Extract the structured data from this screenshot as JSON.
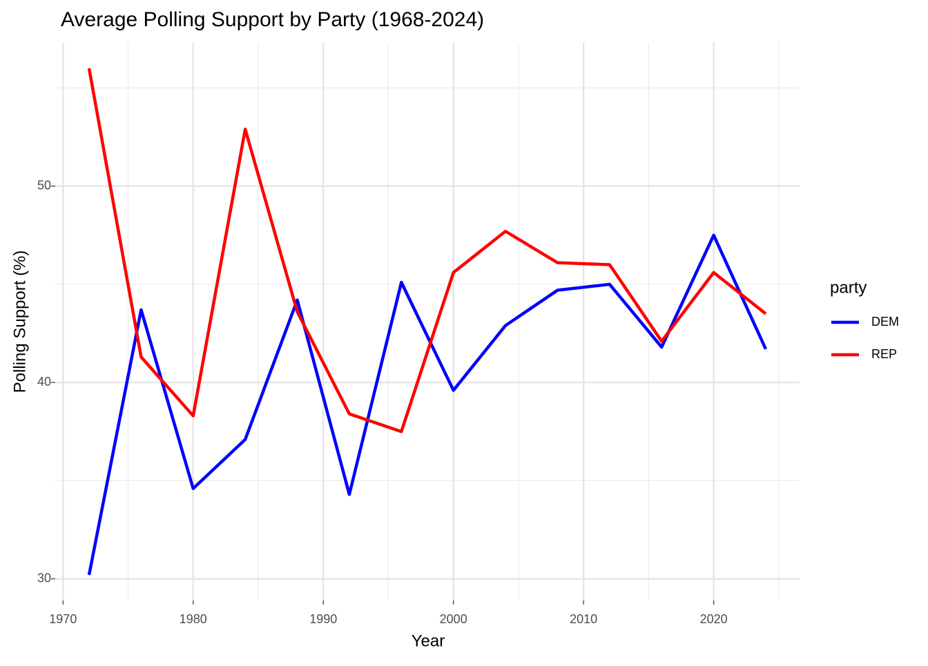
{
  "chart_data": {
    "type": "line",
    "title": "Average Polling Support by Party (1968-2024)",
    "x_label": "Year",
    "y_label": "Polling Support (%)",
    "legend_title": "party",
    "legend": "right",
    "x": [
      1972,
      1976,
      1980,
      1984,
      1988,
      1992,
      1996,
      2000,
      2004,
      2008,
      2012,
      2016,
      2020,
      2024
    ],
    "series": [
      {
        "name": "DEM",
        "color": "#0000ff",
        "values": [
          30.2,
          43.7,
          34.6,
          37.1,
          44.2,
          34.3,
          45.1,
          39.6,
          42.9,
          44.7,
          45.0,
          41.8,
          47.5,
          41.7
        ]
      },
      {
        "name": "REP",
        "color": "#ff0000",
        "values": [
          56.0,
          41.3,
          38.3,
          52.9,
          43.6,
          38.4,
          37.5,
          45.6,
          47.7,
          46.1,
          46.0,
          42.1,
          45.6,
          43.5
        ]
      }
    ],
    "xlim": [
      1969.4,
      2026.6
    ],
    "xticks": [
      1970,
      1980,
      1990,
      2000,
      2010,
      2020
    ],
    "xminor": [
      1975,
      1985,
      1995,
      2005,
      2015,
      2025
    ],
    "ylim": [
      28.9,
      57.3
    ],
    "yticks": [
      30,
      40,
      50
    ],
    "yminor": [
      35,
      45,
      55
    ],
    "grid": true
  }
}
